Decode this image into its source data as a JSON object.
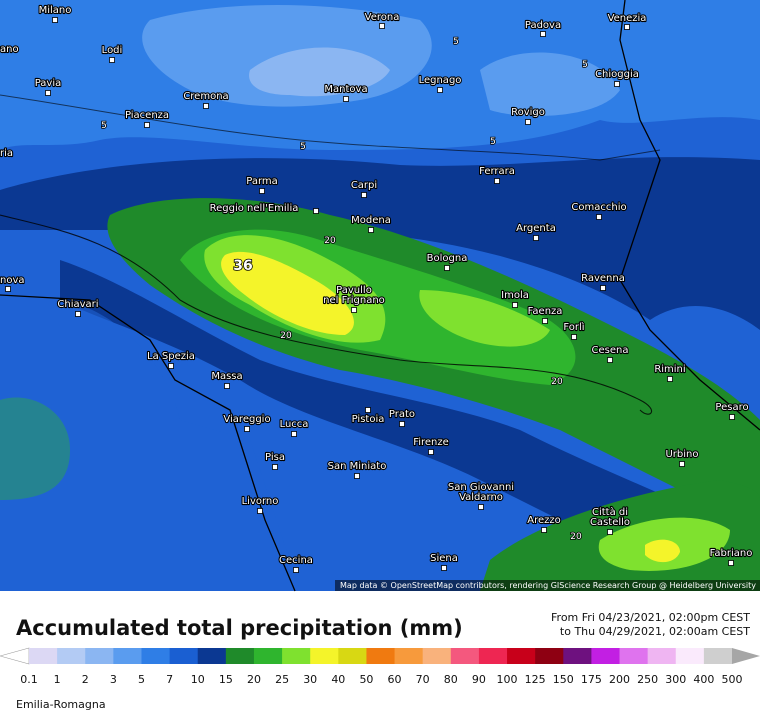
{
  "map": {
    "cities": [
      "Milano",
      "Verona",
      "Padova",
      "Venezia",
      "ano",
      "Lodi",
      "Pavia",
      "Cremona",
      "Mantova",
      "Legnago",
      "Chioggia",
      "Rovigo",
      "Piacenza",
      "ria",
      "Parma",
      "Carpi",
      "Ferrara",
      "Reggio nell'Emilia",
      "Modena",
      "Comacchio",
      "Argenta",
      "Bologna",
      "nova",
      "Ravenna",
      "Imola",
      "Chiavari",
      "Pavullo",
      "nel Frignano",
      "Faenza",
      "Forlì",
      "Cesena",
      "La Spezia",
      "Rimini",
      "Massa",
      "Pesaro",
      "Viareggio",
      "Lucca",
      "Pistoia",
      "Prato",
      "Firenze",
      "Urbino",
      "Pisa",
      "San Miniato",
      "San Giovanni",
      "Valdarno",
      "Livorno",
      "Arezzo",
      "Città di",
      "Castello",
      "Cecina",
      "Siena",
      "Fabriano"
    ],
    "contour_labels": [
      "5",
      "5",
      "5",
      "5",
      "5",
      "20",
      "20",
      "20",
      "20",
      "36"
    ],
    "attribution": "Map data © OpenStreetMap contributors, rendering GIScience Research Group @ Heidelberg University"
  },
  "footer": {
    "title": "Accumulated total precipitation (mm)",
    "from": "From Fri 04/23/2021, 02:00pm CEST",
    "to": "to Thu 04/29/2021, 02:00am CEST",
    "region": "Emilia-Romagna"
  },
  "legend": {
    "labels": [
      "0.1",
      "1",
      "2",
      "3",
      "5",
      "7",
      "10",
      "15",
      "20",
      "25",
      "30",
      "40",
      "50",
      "60",
      "70",
      "80",
      "90",
      "100",
      "125",
      "150",
      "175",
      "200",
      "250",
      "300",
      "400",
      "500"
    ],
    "colors": [
      "#ffffff",
      "#dcd8f4",
      "#b3cbf4",
      "#8bb6f2",
      "#5a9cef",
      "#2f7ee6",
      "#1a5fd2",
      "#0b3892",
      "#1f8a2a",
      "#2fb52e",
      "#7fe12f",
      "#f4f42a",
      "#d8d813",
      "#f07a10",
      "#f79a3c",
      "#f9b27c",
      "#f4587e",
      "#ee2652",
      "#c8001a",
      "#8e0012",
      "#6e117f",
      "#c21fe3",
      "#df73ee",
      "#efb5f2",
      "#faeafc",
      "#cfcfcf",
      "#a6a6a6"
    ]
  }
}
